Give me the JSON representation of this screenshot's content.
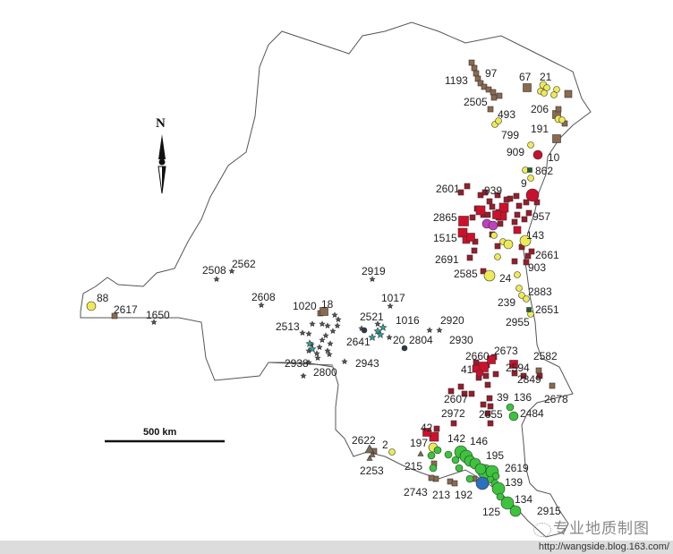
{
  "north_label": "N",
  "scale_bar": {
    "label": "500 km"
  },
  "watermark": {
    "text": "专业地质制图",
    "url": "http://wangside.blog.163.com/"
  },
  "symbol_colors": {
    "brown-square": "#8b6a4f",
    "dark-red-square": "#9b1b2b",
    "red-square": "#d0102a",
    "red-circle": "#c8102e",
    "yellow-circle": "#eeea55",
    "green-circle": "#3cc43c",
    "grey-star": "#555555",
    "teal-star": "#2aa59a",
    "magenta-circle": "#c040c0",
    "blue-circle": "#2a6fc0",
    "dark-green-square": "#1f5f2f",
    "brown-triangle": "#7a6a55"
  },
  "locality_labels": [
    "1193",
    "97",
    "67",
    "21",
    "2505",
    "493",
    "206",
    "799",
    "191",
    "909",
    "10",
    "862",
    "9",
    "2601",
    "939",
    "2865",
    "957",
    "1515",
    "143",
    "2691",
    "2661",
    "903",
    "2585",
    "24",
    "2883",
    "239",
    "2651",
    "2955",
    "2508",
    "2562",
    "2919",
    "2608",
    "1017",
    "1020",
    "18",
    "2521",
    "1016",
    "2920",
    "2513",
    "2641",
    "20",
    "2804",
    "2930",
    "2938",
    "2943",
    "2800",
    "2660",
    "2673",
    "2582",
    "41",
    "2594",
    "2849",
    "2607",
    "39",
    "136",
    "2678",
    "2972",
    "2655",
    "2484",
    "42",
    "142",
    "146",
    "2622",
    "2",
    "197",
    "195",
    "215",
    "2253",
    "2619",
    "139",
    "2743",
    "213",
    "192",
    "134",
    "125",
    "2915",
    "88",
    "2617",
    "1650"
  ]
}
